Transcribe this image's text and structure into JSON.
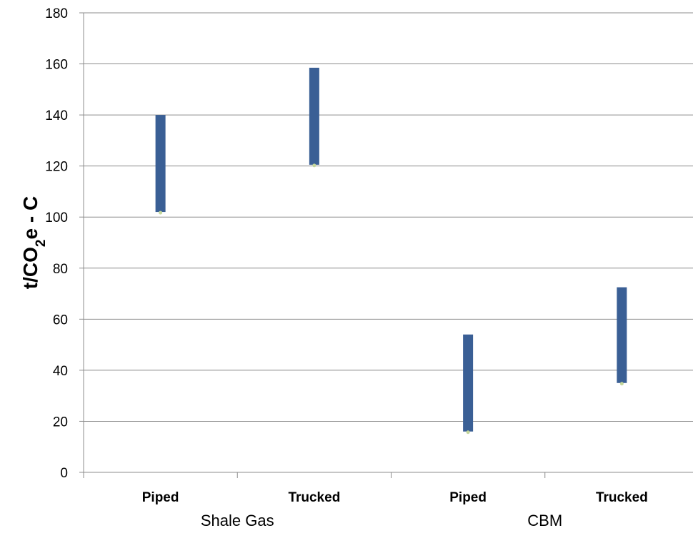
{
  "chart_data": {
    "type": "bar",
    "subtype": "floating-range",
    "title": "",
    "xlabel": "",
    "ylabel": {
      "prefix": "t/CO",
      "subscript": "2",
      "suffix": "e - C"
    },
    "ylim": [
      0,
      180
    ],
    "yticks": [
      0,
      20,
      40,
      60,
      80,
      100,
      120,
      140,
      160,
      180
    ],
    "grid": true,
    "legend": "none",
    "bar_color": "#3A5F95",
    "marker_color": "#C3D69B",
    "groups": [
      {
        "name": "Shale Gas",
        "categories": [
          {
            "label": "Piped",
            "low": 102,
            "high": 140
          },
          {
            "label": "Trucked",
            "low": 120.5,
            "high": 158.5
          }
        ]
      },
      {
        "name": "CBM",
        "categories": [
          {
            "label": "Piped",
            "low": 16,
            "high": 54
          },
          {
            "label": "Trucked",
            "low": 35,
            "high": 72.5
          }
        ]
      }
    ]
  }
}
